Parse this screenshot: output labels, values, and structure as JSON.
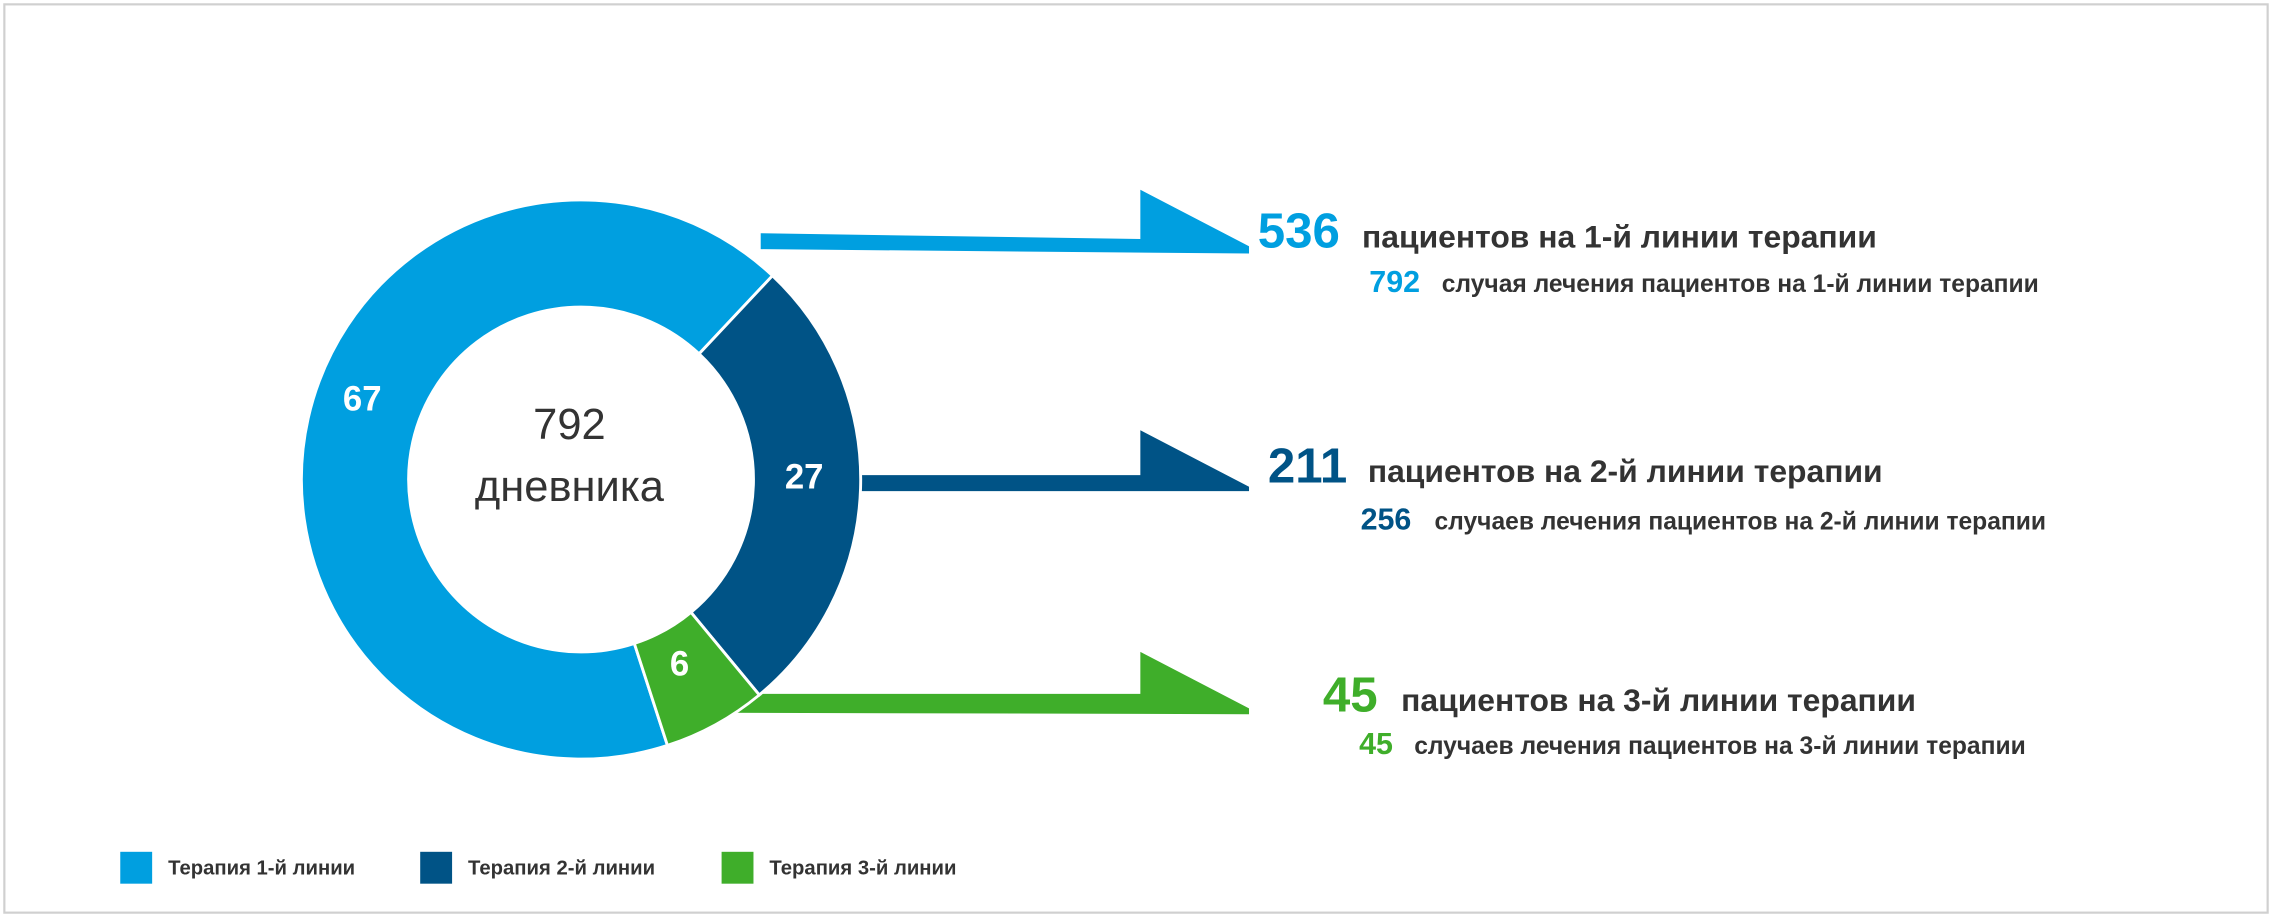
{
  "chart_data": {
    "type": "donut",
    "center_value": 792,
    "center_label": "дневника",
    "categories": [
      "Терапия 1-й линии",
      "Терапия 2-й линии",
      "Терапия 3-й линии"
    ],
    "values": [
      67,
      27,
      6
    ],
    "colors": [
      "#009fe0",
      "#005386",
      "#3fae2a"
    ],
    "annotations": [
      {
        "value": 536,
        "text": "пациентов на 1-й линии терапии",
        "sub_value": 792,
        "sub_text": "случая лечения пациентов на 1-й линии терапии"
      },
      {
        "value": 211,
        "text": "пациентов на 2-й линии терапии",
        "sub_value": 256,
        "sub_text": "случаев лечения пациентов на 2-й линии терапии"
      },
      {
        "value": 45,
        "text": "пациентов на 3-й линии терапии",
        "sub_value": 45,
        "sub_text": "случаев лечения пациентов на 3-й линии терапии"
      }
    ]
  }
}
